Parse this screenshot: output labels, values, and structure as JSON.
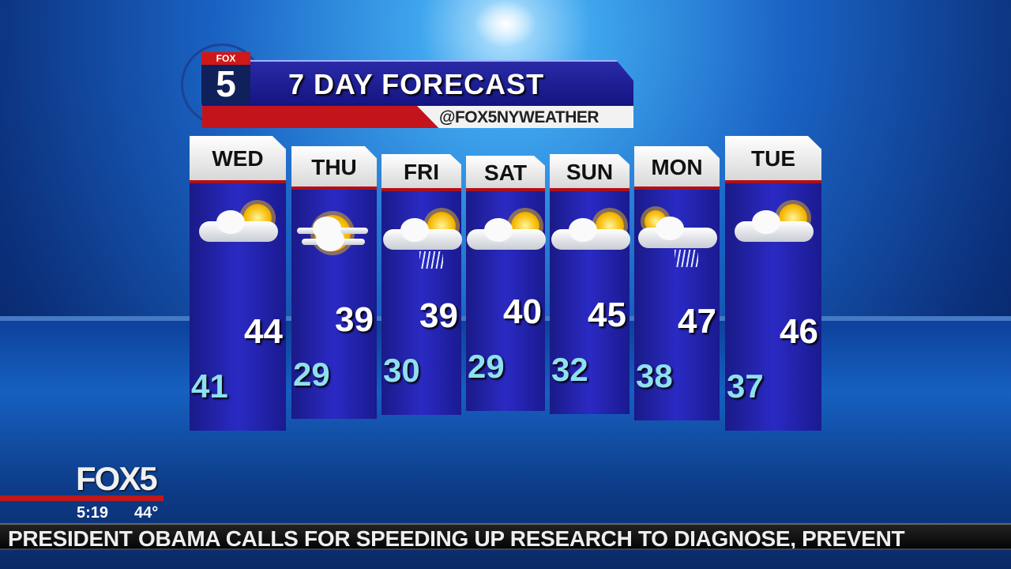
{
  "header": {
    "title": "7 DAY FORECAST",
    "handle": "@FOX5NYWEATHER",
    "logo_top": "FOX",
    "logo_number": "5"
  },
  "days": [
    {
      "day": "WED",
      "high": "44",
      "low": "41",
      "icon": "partly-cloudy-icon"
    },
    {
      "day": "THU",
      "high": "39",
      "low": "29",
      "icon": "sunny-hazy-icon"
    },
    {
      "day": "FRI",
      "high": "39",
      "low": "30",
      "icon": "partly-cloudy-snow-icon"
    },
    {
      "day": "SAT",
      "high": "40",
      "low": "29",
      "icon": "partly-cloudy-icon"
    },
    {
      "day": "SUN",
      "high": "45",
      "low": "32",
      "icon": "partly-cloudy-icon"
    },
    {
      "day": "MON",
      "high": "47",
      "low": "38",
      "icon": "cloudy-rain-snow-icon"
    },
    {
      "day": "TUE",
      "high": "46",
      "low": "37",
      "icon": "partly-cloudy-icon"
    }
  ],
  "bug": {
    "logo": "FOX5",
    "time": "5:19",
    "temperature": "44°"
  },
  "ticker": {
    "text": "PRESIDENT OBAMA CALLS FOR SPEEDING UP RESEARCH TO DIAGNOSE, PREVENT"
  },
  "colors": {
    "accent_red": "#c3141c",
    "panel_blue": "#2a2ac4",
    "low_temp": "#8ee0f0"
  }
}
